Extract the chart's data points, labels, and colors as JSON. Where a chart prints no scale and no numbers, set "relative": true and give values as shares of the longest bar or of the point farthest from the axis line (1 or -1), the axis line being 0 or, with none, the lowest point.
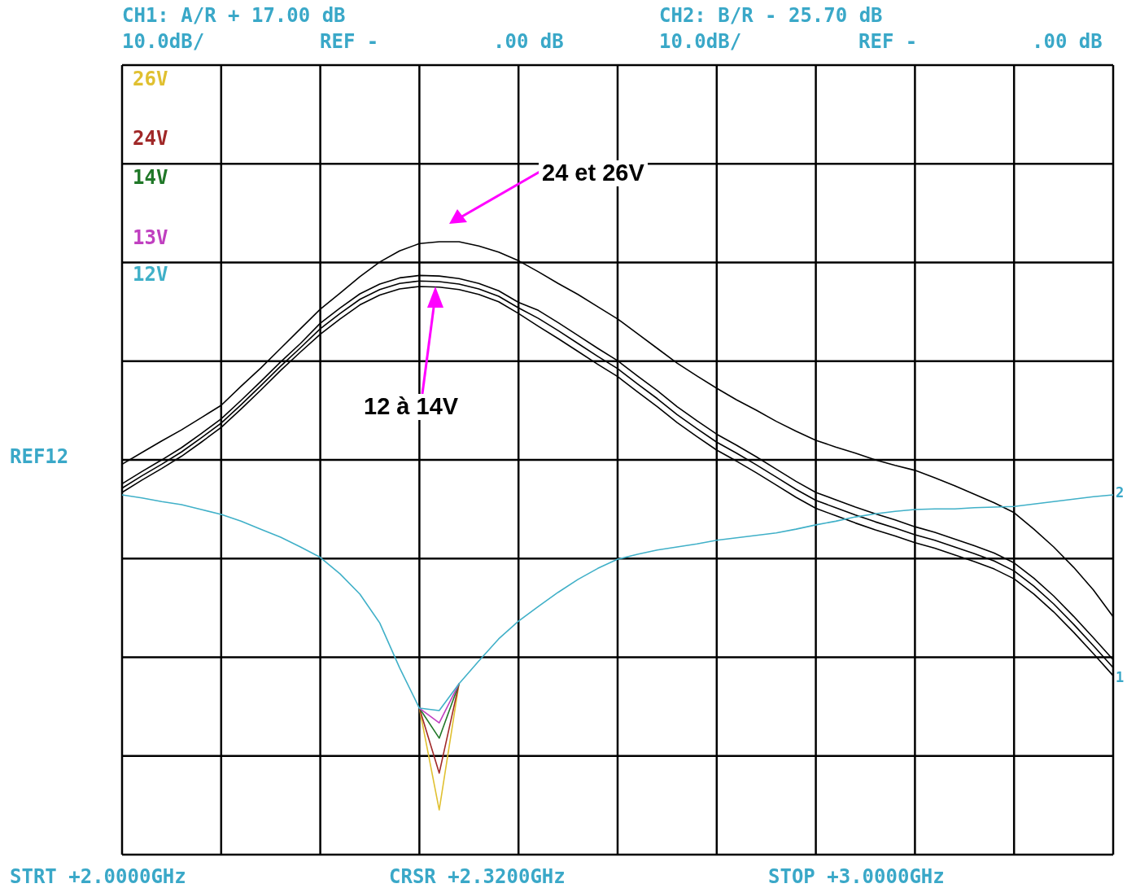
{
  "chart_data": {
    "type": "line",
    "relative": true,
    "grid": true,
    "legend": "top left",
    "marker": "none",
    "line_style": "solid",
    "categories": [
      null,
      null,
      null,
      null,
      null,
      null,
      null,
      null,
      null,
      null,
      null,
      null,
      null,
      null,
      null,
      null,
      null,
      null,
      null,
      null,
      null,
      null,
      null,
      null,
      null,
      null,
      null,
      null,
      null,
      null,
      null,
      null,
      null,
      null,
      null,
      null,
      null,
      null,
      null,
      null,
      null,
      null,
      null,
      null,
      null,
      null,
      null,
      null,
      null,
      null,
      null
    ],
    "series": [
      {
        "color": "#000000",
        "values": [
          0.637,
          0.656,
          0.675,
          0.693,
          0.713,
          0.733,
          0.764,
          0.794,
          0.826,
          0.858,
          0.89,
          0.916,
          0.943,
          0.967,
          0.985,
          0.997,
          1,
          1,
          0.993,
          0.983,
          0.969,
          0.951,
          0.932,
          0.914,
          0.894,
          0.874,
          0.85,
          0.826,
          0.802,
          0.781,
          0.761,
          0.742,
          0.725,
          0.707,
          0.691,
          0.676,
          0.665,
          0.655,
          0.644,
          0.635,
          0.627,
          0.615,
          0.602,
          0.588,
          0.574,
          0.558,
          0.531,
          0.502,
          0.469,
          0.432,
          0.388
        ]
      },
      {
        "color": "#000000",
        "values": [
          0.605,
          0.625,
          0.644,
          0.664,
          0.687,
          0.711,
          0.741,
          0.772,
          0.804,
          0.834,
          0.867,
          0.892,
          0.915,
          0.931,
          0.941,
          0.945,
          0.944,
          0.94,
          0.932,
          0.92,
          0.901,
          0.888,
          0.868,
          0.847,
          0.826,
          0.806,
          0.781,
          0.757,
          0.731,
          0.708,
          0.686,
          0.668,
          0.649,
          0.629,
          0.609,
          0.591,
          0.579,
          0.567,
          0.556,
          0.546,
          0.535,
          0.526,
          0.515,
          0.504,
          0.492,
          0.476,
          0.451,
          0.422,
          0.389,
          0.354,
          0.318
        ]
      },
      {
        "color": "#000000",
        "values": [
          0.598,
          0.618,
          0.637,
          0.657,
          0.68,
          0.704,
          0.734,
          0.765,
          0.797,
          0.827,
          0.858,
          0.883,
          0.906,
          0.922,
          0.932,
          0.936,
          0.935,
          0.931,
          0.923,
          0.911,
          0.892,
          0.875,
          0.855,
          0.834,
          0.813,
          0.793,
          0.768,
          0.744,
          0.718,
          0.695,
          0.673,
          0.655,
          0.636,
          0.616,
          0.596,
          0.578,
          0.566,
          0.554,
          0.543,
          0.533,
          0.522,
          0.513,
          0.502,
          0.491,
          0.479,
          0.463,
          0.438,
          0.409,
          0.376,
          0.341,
          0.305
        ]
      },
      {
        "color": "#000000",
        "values": [
          0.591,
          0.611,
          0.63,
          0.65,
          0.673,
          0.697,
          0.727,
          0.758,
          0.79,
          0.82,
          0.849,
          0.874,
          0.897,
          0.913,
          0.923,
          0.927,
          0.926,
          0.922,
          0.914,
          0.902,
          0.883,
          0.862,
          0.842,
          0.821,
          0.8,
          0.78,
          0.755,
          0.731,
          0.705,
          0.682,
          0.66,
          0.642,
          0.623,
          0.603,
          0.583,
          0.565,
          0.553,
          0.541,
          0.53,
          0.52,
          0.509,
          0.5,
          0.489,
          0.478,
          0.466,
          0.45,
          0.425,
          0.396,
          0.363,
          0.328,
          0.292
        ]
      },
      {
        "name": "26V",
        "color": "#e0c030",
        "values": [
          null,
          null,
          null,
          null,
          null,
          null,
          null,
          null,
          null,
          null,
          null,
          null,
          null,
          null,
          null,
          0.239,
          0.073,
          0.279,
          null,
          null,
          null,
          null,
          null,
          null,
          null,
          null,
          null,
          null,
          null,
          null,
          null,
          null,
          null,
          null,
          null,
          null,
          null,
          null,
          null,
          null,
          null,
          null,
          null,
          null,
          null,
          null,
          null,
          null,
          null,
          null,
          null
        ]
      },
      {
        "name": "24V",
        "color": "#a02828",
        "values": [
          null,
          null,
          null,
          null,
          null,
          null,
          null,
          null,
          null,
          null,
          null,
          null,
          null,
          null,
          null,
          0.239,
          0.133,
          0.279,
          null,
          null,
          null,
          null,
          null,
          null,
          null,
          null,
          null,
          null,
          null,
          null,
          null,
          null,
          null,
          null,
          null,
          null,
          null,
          null,
          null,
          null,
          null,
          null,
          null,
          null,
          null,
          null,
          null,
          null,
          null,
          null,
          null
        ]
      },
      {
        "name": "14V",
        "color": "#207828",
        "values": [
          null,
          null,
          null,
          null,
          null,
          null,
          null,
          null,
          null,
          null,
          null,
          null,
          null,
          null,
          null,
          0.239,
          0.19,
          0.279,
          null,
          null,
          null,
          null,
          null,
          null,
          null,
          null,
          null,
          null,
          null,
          null,
          null,
          null,
          null,
          null,
          null,
          null,
          null,
          null,
          null,
          null,
          null,
          null,
          null,
          null,
          null,
          null,
          null,
          null,
          null,
          null,
          null
        ]
      },
      {
        "name": "13V",
        "color": "#c040c0",
        "values": [
          null,
          null,
          null,
          null,
          null,
          null,
          null,
          null,
          null,
          null,
          null,
          null,
          null,
          null,
          null,
          0.239,
          0.215,
          0.279,
          null,
          null,
          null,
          null,
          null,
          null,
          null,
          null,
          null,
          null,
          null,
          null,
          null,
          null,
          null,
          null,
          null,
          null,
          null,
          null,
          null,
          null,
          null,
          null,
          null,
          null,
          null,
          null,
          null,
          null,
          null,
          null,
          null
        ]
      },
      {
        "name": "12V",
        "color": "#40b0c8",
        "values": [
          0.587,
          0.582,
          0.576,
          0.571,
          0.563,
          0.555,
          0.544,
          0.531,
          0.518,
          0.502,
          0.485,
          0.458,
          0.425,
          0.378,
          0.305,
          0.239,
          0.235,
          0.279,
          0.316,
          0.352,
          0.381,
          0.405,
          0.428,
          0.449,
          0.467,
          0.482,
          0.49,
          0.497,
          0.502,
          0.507,
          0.513,
          0.517,
          0.521,
          0.525,
          0.531,
          0.538,
          0.544,
          0.551,
          0.556,
          0.56,
          0.563,
          0.564,
          0.564,
          0.566,
          0.567,
          0.568,
          0.572,
          0.576,
          0.58,
          0.584,
          0.587
        ]
      }
    ],
    "annotations": [
      "CH1: A/R + 17.00 dB",
      "10.0dB/",
      "REF -",
      ".00 dB",
      "CH2: B/R - 25.70 dB",
      "10.0dB/",
      "REF -",
      ".00 dB",
      "REF12",
      "2",
      "1",
      "STRT +2.0000GHz",
      "CRSR +2.3200GHz",
      "STOP +3.0000GHz",
      "24 et 26V",
      "12 à 14V"
    ]
  }
}
